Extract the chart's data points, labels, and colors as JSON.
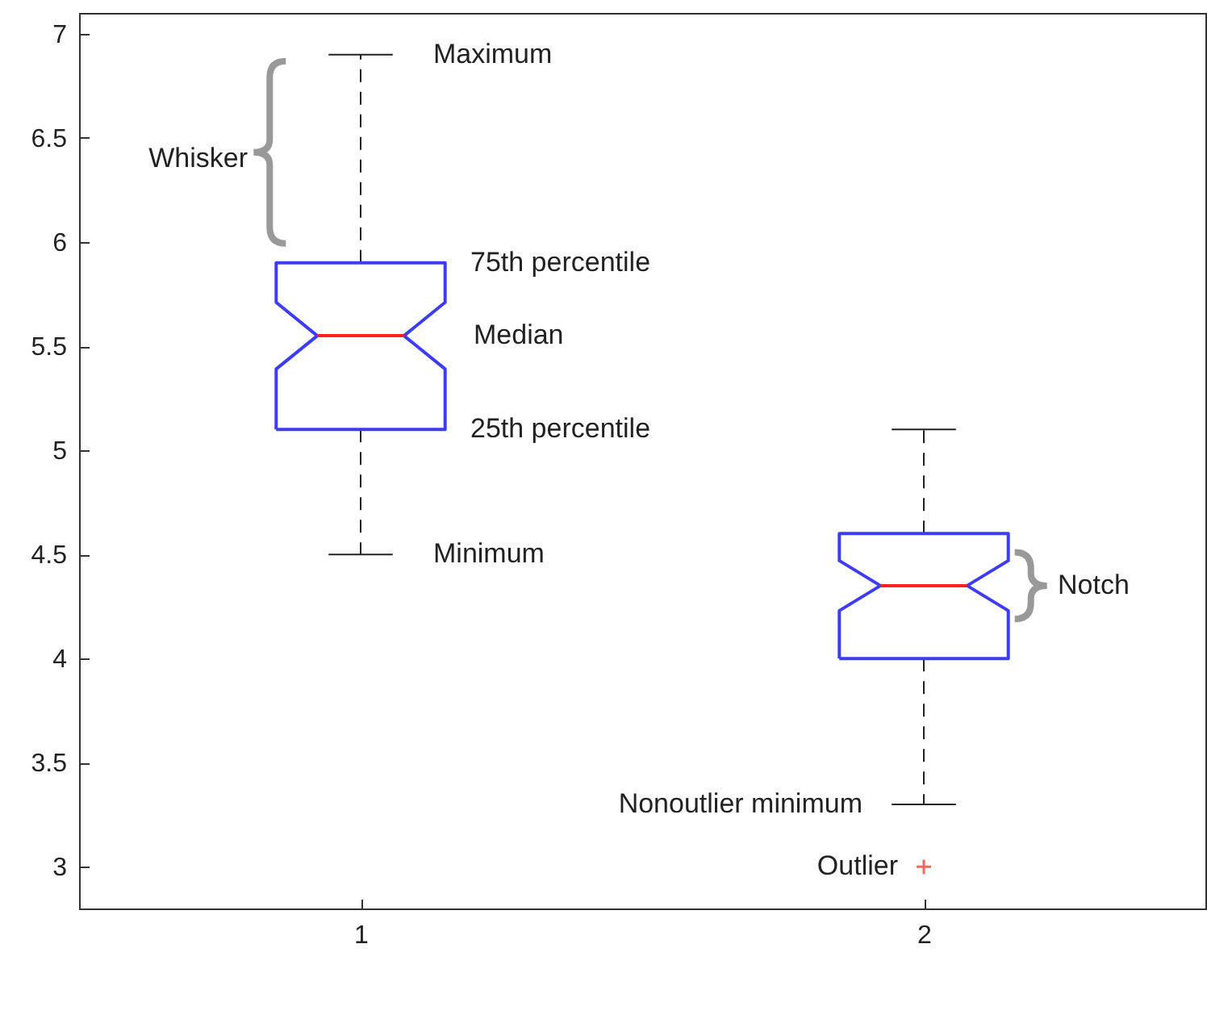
{
  "chart_data": {
    "type": "box",
    "categories": [
      "1",
      "2"
    ],
    "series": [
      {
        "color": "#3c3cf5",
        "boxes": [
          {
            "low": 4.5,
            "q1": 5.1,
            "median": 5.55,
            "q3": 5.9,
            "high": 6.9
          },
          {
            "low": 3.3,
            "q1": 4.0,
            "median": 4.35,
            "q3": 4.6,
            "high": 5.1,
            "outliers": [
              3.0
            ]
          }
        ]
      }
    ],
    "ylim": [
      2.8,
      7.1
    ],
    "yticks": [
      3,
      3.5,
      4,
      4.5,
      5,
      5.5,
      6,
      6.5,
      7
    ],
    "grid": false,
    "line_style": "dashed",
    "marker": "cross",
    "annotations": [
      {
        "text": "Maximum",
        "x": "1",
        "y": 6.9
      },
      "75th percentile",
      "Median",
      "25th percentile",
      {
        "text": "Minimum",
        "x": "1",
        "y": 4.5
      },
      "Whisker",
      "Notch",
      {
        "text": "Nonoutlier minimum",
        "x": "2",
        "y": 3.3
      },
      "Outlier"
    ]
  }
}
